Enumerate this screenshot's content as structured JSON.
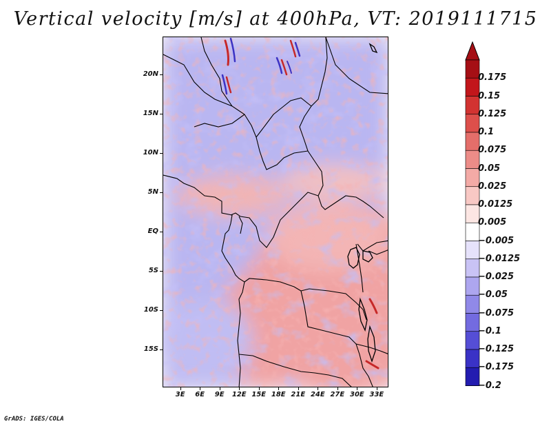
{
  "title": "Vertical velocity [m/s] at 400hPa, VT: 2019111715",
  "footer": "GrADS: IGES/COLA",
  "map": {
    "lat_labels": [
      "20N",
      "15N",
      "10N",
      "5N",
      "EQ",
      "5S",
      "10S",
      "15S"
    ],
    "lat_values": [
      20,
      15,
      10,
      5,
      0,
      -5,
      -10,
      -15
    ],
    "lon_labels": [
      "3E",
      "6E",
      "9E",
      "12E",
      "15E",
      "18E",
      "21E",
      "24E",
      "27E",
      "30E",
      "33E"
    ],
    "lon_values": [
      3,
      6,
      9,
      12,
      15,
      18,
      21,
      24,
      27,
      30,
      33
    ],
    "lon_range": [
      0.3,
      34.8
    ],
    "lat_range": [
      -19.8,
      24.8
    ],
    "field_colors": {
      "strong_sink": "#5a4fd6",
      "sink": "#9b97ee",
      "neutral": "#f4eef4",
      "rise": "#ef9a9a",
      "strong_rise": "#cf2b2b"
    }
  },
  "colorbar": {
    "labels": [
      "0.175",
      "0.15",
      "0.125",
      "0.1",
      "0.075",
      "0.05",
      "0.025",
      "0.0125",
      "0.005",
      "−0.005",
      "−0.0125",
      "−0.025",
      "−0.05",
      "−0.075",
      "−0.1",
      "−0.125",
      "−0.175",
      "−0.2"
    ],
    "colors": [
      "#a50f15",
      "#c2161b",
      "#d23331",
      "#dd4f4b",
      "#e46e6a",
      "#ec8c88",
      "#f3aaa6",
      "#f8c8c4",
      "#fce6e3",
      "#ffffff",
      "#e6e2fb",
      "#c9c3f5",
      "#ada6ef",
      "#9089e8",
      "#736be0",
      "#554ed6",
      "#3a32c6",
      "#231cb0",
      "#140d9a"
    ],
    "arrow_top_color": "#a50f15",
    "arrow_bottom_color": "#140d9a"
  }
}
